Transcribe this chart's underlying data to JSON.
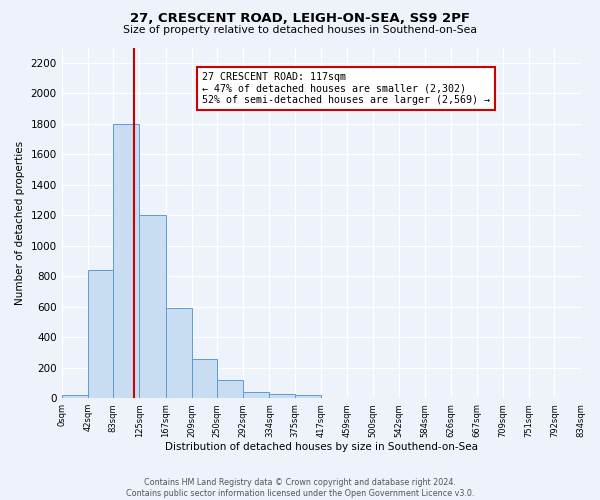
{
  "title": "27, CRESCENT ROAD, LEIGH-ON-SEA, SS9 2PF",
  "subtitle": "Size of property relative to detached houses in Southend-on-Sea",
  "xlabel": "Distribution of detached houses by size in Southend-on-Sea",
  "ylabel": "Number of detached properties",
  "bin_edges": [
    0,
    42,
    83,
    125,
    167,
    209,
    250,
    292,
    334,
    375,
    417,
    459,
    500,
    542,
    584,
    626,
    667,
    709,
    751,
    792,
    834
  ],
  "bar_heights": [
    20,
    840,
    1800,
    1200,
    590,
    255,
    120,
    40,
    25,
    20,
    0,
    0,
    0,
    0,
    0,
    0,
    0,
    0,
    0,
    0
  ],
  "bar_color": "#c9ddf2",
  "bar_edge_color": "#5b9bd5",
  "property_value": 117,
  "vline_color": "#cc0000",
  "annotation_line1": "27 CRESCENT ROAD: 117sqm",
  "annotation_line2": "← 47% of detached houses are smaller (2,302)",
  "annotation_line3": "52% of semi-detached houses are larger (2,569) →",
  "annotation_box_edgecolor": "#cc0000",
  "ylim": [
    0,
    2300
  ],
  "yticks": [
    0,
    200,
    400,
    600,
    800,
    1000,
    1200,
    1400,
    1600,
    1800,
    2000,
    2200
  ],
  "tick_labels": [
    "0sqm",
    "42sqm",
    "83sqm",
    "125sqm",
    "167sqm",
    "209sqm",
    "250sqm",
    "292sqm",
    "334sqm",
    "375sqm",
    "417sqm",
    "459sqm",
    "500sqm",
    "542sqm",
    "584sqm",
    "626sqm",
    "667sqm",
    "709sqm",
    "751sqm",
    "792sqm",
    "834sqm"
  ],
  "footer_text": "Contains HM Land Registry data © Crown copyright and database right 2024.\nContains public sector information licensed under the Open Government Licence v3.0.",
  "bg_color": "#eef2fa"
}
